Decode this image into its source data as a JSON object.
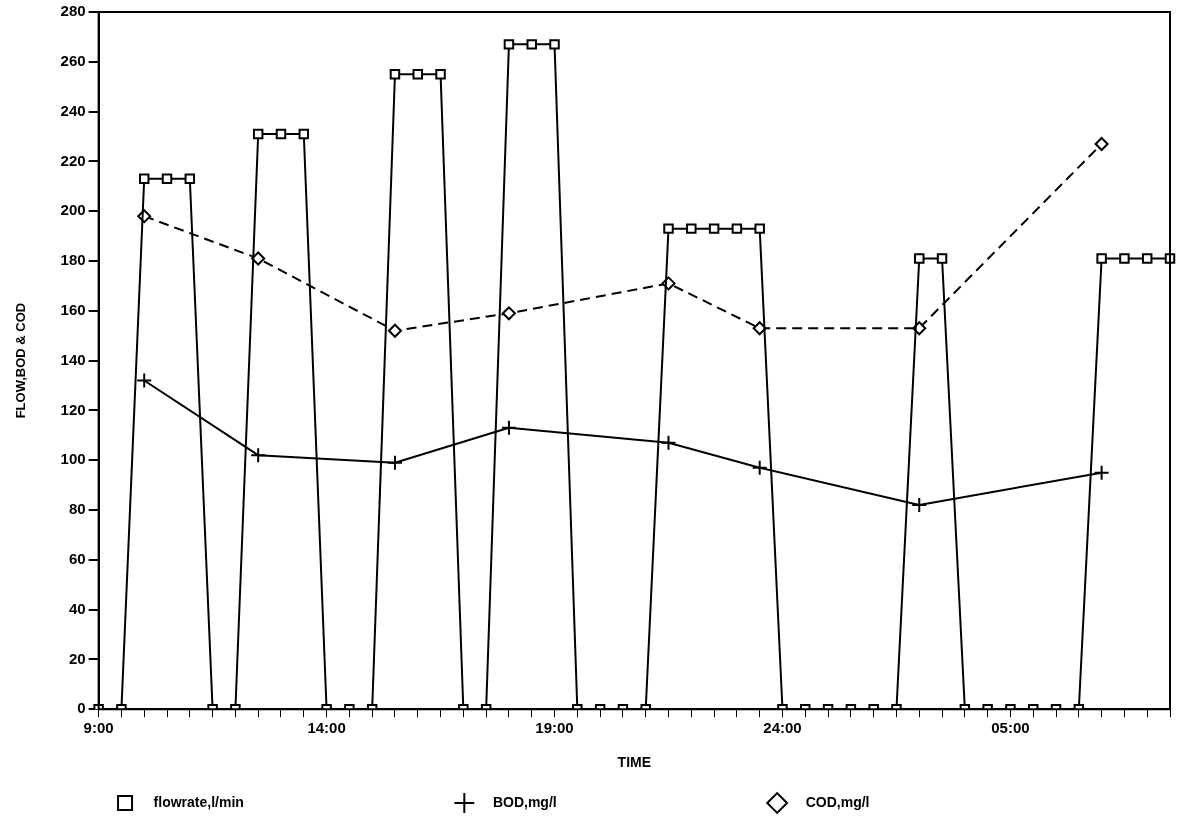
{
  "chart_data": {
    "type": "line",
    "xlabel": "TIME",
    "ylabel": "FLOW,BOD & COD",
    "categories": [
      "9:00",
      null,
      null,
      null,
      null,
      null,
      null,
      null,
      null,
      null,
      "14:00",
      null,
      null,
      null,
      null,
      null,
      null,
      null,
      null,
      null,
      "19:00",
      null,
      null,
      null,
      null,
      null,
      null,
      null,
      null,
      null,
      "24:00",
      null,
      null,
      null,
      null,
      null,
      null,
      null,
      null,
      null,
      "05:00",
      null,
      null,
      null,
      null,
      null,
      null,
      null
    ],
    "ylim": [
      0,
      280
    ],
    "yticks": [
      0,
      20,
      40,
      60,
      80,
      100,
      120,
      140,
      160,
      180,
      200,
      220,
      240,
      260,
      280
    ],
    "legend": "bottom",
    "series": [
      {
        "name": "flowrate,l/min",
        "color": "#000000",
        "marker": "square",
        "line_style": "solid",
        "values": [
          0,
          0,
          213,
          213,
          213,
          0,
          0,
          231,
          231,
          231,
          0,
          0,
          0,
          255,
          255,
          255,
          0,
          0,
          267,
          267,
          267,
          0,
          0,
          0,
          0,
          193,
          193,
          193,
          193,
          193,
          0,
          0,
          0,
          0,
          0,
          0,
          181,
          181,
          0,
          0,
          0,
          0,
          0,
          0,
          181,
          181,
          181,
          181
        ]
      },
      {
        "name": "BOD,mg/l",
        "color": "#000000",
        "marker": "cross",
        "line_style": "solid",
        "values": [
          null,
          null,
          132,
          null,
          null,
          null,
          null,
          102,
          null,
          null,
          null,
          null,
          null,
          99,
          null,
          null,
          null,
          null,
          113,
          null,
          null,
          null,
          null,
          null,
          null,
          107,
          null,
          null,
          null,
          97,
          null,
          null,
          null,
          null,
          null,
          null,
          82,
          null,
          null,
          null,
          null,
          null,
          null,
          null,
          95,
          null,
          null,
          null
        ]
      },
      {
        "name": "COD,mg/l",
        "color": "#000000",
        "marker": "diamond",
        "line_style": "dashed",
        "values": [
          null,
          null,
          198,
          null,
          null,
          null,
          null,
          181,
          null,
          null,
          null,
          null,
          null,
          152,
          null,
          null,
          null,
          null,
          159,
          null,
          null,
          null,
          null,
          null,
          null,
          171,
          null,
          null,
          null,
          153,
          null,
          null,
          null,
          null,
          null,
          null,
          153,
          null,
          null,
          null,
          null,
          null,
          null,
          null,
          227,
          null,
          null,
          null
        ]
      }
    ]
  }
}
